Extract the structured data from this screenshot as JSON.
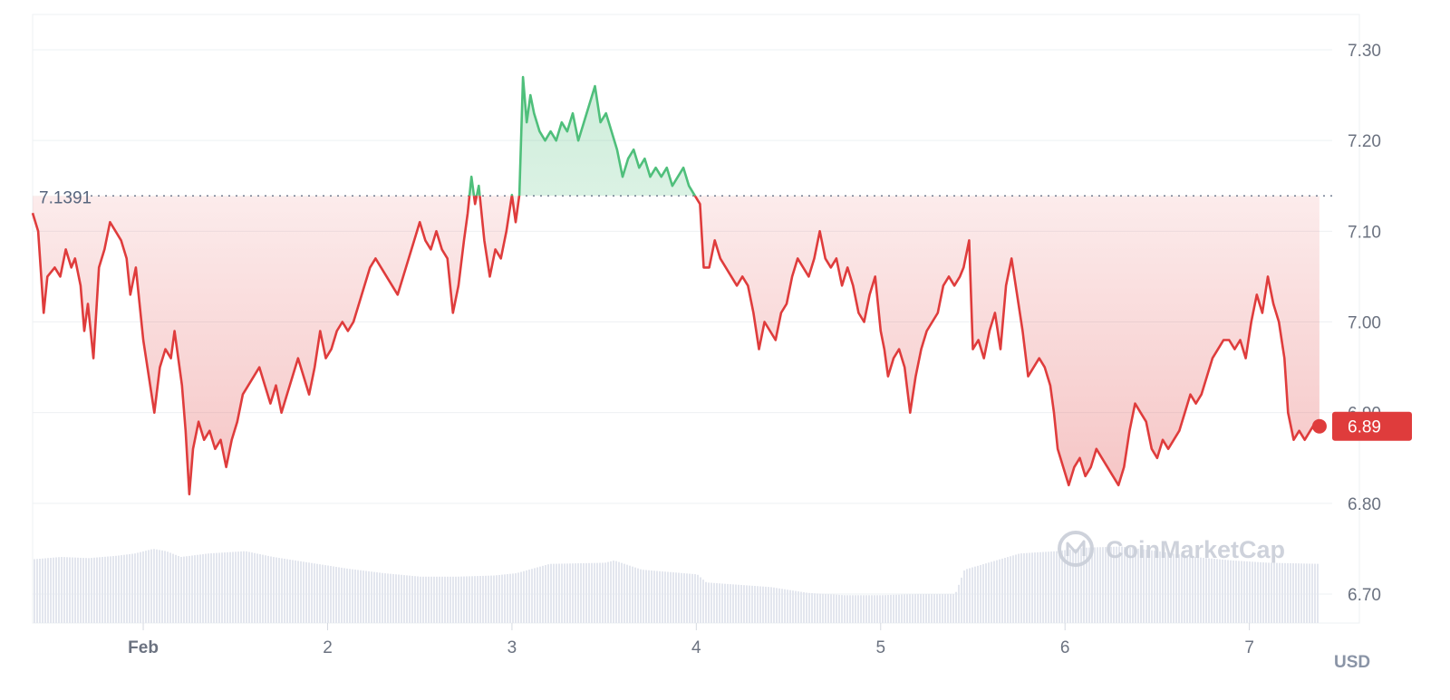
{
  "chart_data": {
    "type": "line",
    "y_unit": "USD",
    "ylim": [
      6.7,
      7.3
    ],
    "y_ticks": [
      "7.30",
      "7.20",
      "7.10",
      "7.00",
      "6.90",
      "6.80",
      "6.70"
    ],
    "x_range_days": [
      0.4,
      7.4
    ],
    "x_ticks": [
      {
        "label": "Feb",
        "day": 1,
        "bold": true
      },
      {
        "label": "2",
        "day": 2,
        "bold": false
      },
      {
        "label": "3",
        "day": 3,
        "bold": false
      },
      {
        "label": "4",
        "day": 4,
        "bold": false
      },
      {
        "label": "5",
        "day": 5,
        "bold": false
      },
      {
        "label": "6",
        "day": 6,
        "bold": false
      },
      {
        "label": "7",
        "day": 7,
        "bold": false
      }
    ],
    "reference_value": 7.139,
    "reference_label": "7.1391",
    "current_price": 6.885,
    "current_price_label": "6.89",
    "colors": {
      "above": "#4fbf7b",
      "below": "#df3c3c",
      "volume": "#e3e6ee",
      "grid": "#eef0f3"
    },
    "watermark": "CoinMarketCap",
    "price": [
      [
        0.4,
        7.12
      ],
      [
        0.43,
        7.1
      ],
      [
        0.46,
        7.01
      ],
      [
        0.48,
        7.05
      ],
      [
        0.52,
        7.06
      ],
      [
        0.55,
        7.05
      ],
      [
        0.58,
        7.08
      ],
      [
        0.61,
        7.06
      ],
      [
        0.63,
        7.07
      ],
      [
        0.66,
        7.04
      ],
      [
        0.68,
        6.99
      ],
      [
        0.7,
        7.02
      ],
      [
        0.73,
        6.96
      ],
      [
        0.76,
        7.06
      ],
      [
        0.79,
        7.08
      ],
      [
        0.82,
        7.11
      ],
      [
        0.85,
        7.1
      ],
      [
        0.88,
        7.09
      ],
      [
        0.91,
        7.07
      ],
      [
        0.93,
        7.03
      ],
      [
        0.96,
        7.06
      ],
      [
        0.98,
        7.02
      ],
      [
        1.0,
        6.98
      ],
      [
        1.03,
        6.94
      ],
      [
        1.06,
        6.9
      ],
      [
        1.09,
        6.95
      ],
      [
        1.12,
        6.97
      ],
      [
        1.15,
        6.96
      ],
      [
        1.17,
        6.99
      ],
      [
        1.19,
        6.96
      ],
      [
        1.21,
        6.93
      ],
      [
        1.23,
        6.88
      ],
      [
        1.25,
        6.81
      ],
      [
        1.27,
        6.86
      ],
      [
        1.3,
        6.89
      ],
      [
        1.33,
        6.87
      ],
      [
        1.36,
        6.88
      ],
      [
        1.39,
        6.86
      ],
      [
        1.42,
        6.87
      ],
      [
        1.45,
        6.84
      ],
      [
        1.48,
        6.87
      ],
      [
        1.51,
        6.89
      ],
      [
        1.54,
        6.92
      ],
      [
        1.57,
        6.93
      ],
      [
        1.6,
        6.94
      ],
      [
        1.63,
        6.95
      ],
      [
        1.66,
        6.93
      ],
      [
        1.69,
        6.91
      ],
      [
        1.72,
        6.93
      ],
      [
        1.75,
        6.9
      ],
      [
        1.78,
        6.92
      ],
      [
        1.81,
        6.94
      ],
      [
        1.84,
        6.96
      ],
      [
        1.87,
        6.94
      ],
      [
        1.9,
        6.92
      ],
      [
        1.93,
        6.95
      ],
      [
        1.96,
        6.99
      ],
      [
        1.99,
        6.96
      ],
      [
        2.02,
        6.97
      ],
      [
        2.05,
        6.99
      ],
      [
        2.08,
        7.0
      ],
      [
        2.11,
        6.99
      ],
      [
        2.14,
        7.0
      ],
      [
        2.17,
        7.02
      ],
      [
        2.2,
        7.04
      ],
      [
        2.23,
        7.06
      ],
      [
        2.26,
        7.07
      ],
      [
        2.29,
        7.06
      ],
      [
        2.32,
        7.05
      ],
      [
        2.35,
        7.04
      ],
      [
        2.38,
        7.03
      ],
      [
        2.41,
        7.05
      ],
      [
        2.44,
        7.07
      ],
      [
        2.47,
        7.09
      ],
      [
        2.5,
        7.11
      ],
      [
        2.53,
        7.09
      ],
      [
        2.56,
        7.08
      ],
      [
        2.59,
        7.1
      ],
      [
        2.62,
        7.08
      ],
      [
        2.65,
        7.07
      ],
      [
        2.68,
        7.01
      ],
      [
        2.71,
        7.04
      ],
      [
        2.74,
        7.09
      ],
      [
        2.76,
        7.12
      ],
      [
        2.78,
        7.16
      ],
      [
        2.8,
        7.13
      ],
      [
        2.82,
        7.15
      ],
      [
        2.85,
        7.09
      ],
      [
        2.88,
        7.05
      ],
      [
        2.91,
        7.08
      ],
      [
        2.94,
        7.07
      ],
      [
        2.97,
        7.1
      ],
      [
        3.0,
        7.14
      ],
      [
        3.02,
        7.11
      ],
      [
        3.04,
        7.14
      ],
      [
        3.06,
        7.27
      ],
      [
        3.08,
        7.22
      ],
      [
        3.1,
        7.25
      ],
      [
        3.12,
        7.23
      ],
      [
        3.15,
        7.21
      ],
      [
        3.18,
        7.2
      ],
      [
        3.21,
        7.21
      ],
      [
        3.24,
        7.2
      ],
      [
        3.27,
        7.22
      ],
      [
        3.3,
        7.21
      ],
      [
        3.33,
        7.23
      ],
      [
        3.36,
        7.2
      ],
      [
        3.39,
        7.22
      ],
      [
        3.42,
        7.24
      ],
      [
        3.45,
        7.26
      ],
      [
        3.48,
        7.22
      ],
      [
        3.51,
        7.23
      ],
      [
        3.54,
        7.21
      ],
      [
        3.57,
        7.19
      ],
      [
        3.6,
        7.16
      ],
      [
        3.63,
        7.18
      ],
      [
        3.66,
        7.19
      ],
      [
        3.69,
        7.17
      ],
      [
        3.72,
        7.18
      ],
      [
        3.75,
        7.16
      ],
      [
        3.78,
        7.17
      ],
      [
        3.81,
        7.16
      ],
      [
        3.84,
        7.17
      ],
      [
        3.87,
        7.15
      ],
      [
        3.9,
        7.16
      ],
      [
        3.93,
        7.17
      ],
      [
        3.96,
        7.15
      ],
      [
        3.99,
        7.14
      ],
      [
        4.02,
        7.13
      ],
      [
        4.04,
        7.06
      ],
      [
        4.07,
        7.06
      ],
      [
        4.1,
        7.09
      ],
      [
        4.13,
        7.07
      ],
      [
        4.16,
        7.06
      ],
      [
        4.19,
        7.05
      ],
      [
        4.22,
        7.04
      ],
      [
        4.25,
        7.05
      ],
      [
        4.28,
        7.04
      ],
      [
        4.31,
        7.01
      ],
      [
        4.34,
        6.97
      ],
      [
        4.37,
        7.0
      ],
      [
        4.4,
        6.99
      ],
      [
        4.43,
        6.98
      ],
      [
        4.46,
        7.01
      ],
      [
        4.49,
        7.02
      ],
      [
        4.52,
        7.05
      ],
      [
        4.55,
        7.07
      ],
      [
        4.58,
        7.06
      ],
      [
        4.61,
        7.05
      ],
      [
        4.64,
        7.07
      ],
      [
        4.67,
        7.1
      ],
      [
        4.7,
        7.07
      ],
      [
        4.73,
        7.06
      ],
      [
        4.76,
        7.07
      ],
      [
        4.79,
        7.04
      ],
      [
        4.82,
        7.06
      ],
      [
        4.85,
        7.04
      ],
      [
        4.88,
        7.01
      ],
      [
        4.91,
        7.0
      ],
      [
        4.94,
        7.03
      ],
      [
        4.97,
        7.05
      ],
      [
        5.0,
        6.99
      ],
      [
        5.02,
        6.97
      ],
      [
        5.04,
        6.94
      ],
      [
        5.07,
        6.96
      ],
      [
        5.1,
        6.97
      ],
      [
        5.13,
        6.95
      ],
      [
        5.16,
        6.9
      ],
      [
        5.19,
        6.94
      ],
      [
        5.22,
        6.97
      ],
      [
        5.25,
        6.99
      ],
      [
        5.28,
        7.0
      ],
      [
        5.31,
        7.01
      ],
      [
        5.34,
        7.04
      ],
      [
        5.37,
        7.05
      ],
      [
        5.4,
        7.04
      ],
      [
        5.43,
        7.05
      ],
      [
        5.45,
        7.06
      ],
      [
        5.48,
        7.09
      ],
      [
        5.5,
        6.97
      ],
      [
        5.53,
        6.98
      ],
      [
        5.56,
        6.96
      ],
      [
        5.59,
        6.99
      ],
      [
        5.62,
        7.01
      ],
      [
        5.65,
        6.97
      ],
      [
        5.68,
        7.04
      ],
      [
        5.71,
        7.07
      ],
      [
        5.74,
        7.03
      ],
      [
        5.77,
        6.99
      ],
      [
        5.8,
        6.94
      ],
      [
        5.83,
        6.95
      ],
      [
        5.86,
        6.96
      ],
      [
        5.89,
        6.95
      ],
      [
        5.92,
        6.93
      ],
      [
        5.94,
        6.9
      ],
      [
        5.96,
        6.86
      ],
      [
        5.99,
        6.84
      ],
      [
        6.02,
        6.82
      ],
      [
        6.05,
        6.84
      ],
      [
        6.08,
        6.85
      ],
      [
        6.11,
        6.83
      ],
      [
        6.14,
        6.84
      ],
      [
        6.17,
        6.86
      ],
      [
        6.2,
        6.85
      ],
      [
        6.23,
        6.84
      ],
      [
        6.26,
        6.83
      ],
      [
        6.29,
        6.82
      ],
      [
        6.32,
        6.84
      ],
      [
        6.35,
        6.88
      ],
      [
        6.38,
        6.91
      ],
      [
        6.41,
        6.9
      ],
      [
        6.44,
        6.89
      ],
      [
        6.47,
        6.86
      ],
      [
        6.5,
        6.85
      ],
      [
        6.53,
        6.87
      ],
      [
        6.56,
        6.86
      ],
      [
        6.59,
        6.87
      ],
      [
        6.62,
        6.88
      ],
      [
        6.65,
        6.9
      ],
      [
        6.68,
        6.92
      ],
      [
        6.71,
        6.91
      ],
      [
        6.74,
        6.92
      ],
      [
        6.77,
        6.94
      ],
      [
        6.8,
        6.96
      ],
      [
        6.83,
        6.97
      ],
      [
        6.86,
        6.98
      ],
      [
        6.89,
        6.98
      ],
      [
        6.92,
        6.97
      ],
      [
        6.95,
        6.98
      ],
      [
        6.98,
        6.96
      ],
      [
        7.01,
        7.0
      ],
      [
        7.04,
        7.03
      ],
      [
        7.07,
        7.01
      ],
      [
        7.1,
        7.05
      ],
      [
        7.13,
        7.02
      ],
      [
        7.16,
        7.0
      ],
      [
        7.19,
        6.96
      ],
      [
        7.21,
        6.9
      ],
      [
        7.24,
        6.87
      ],
      [
        7.27,
        6.88
      ],
      [
        7.3,
        6.87
      ],
      [
        7.33,
        6.88
      ],
      [
        7.36,
        6.89
      ],
      [
        7.38,
        6.885
      ]
    ],
    "volume": [
      [
        0.4,
        0.55
      ],
      [
        0.55,
        0.57
      ],
      [
        0.7,
        0.56
      ],
      [
        0.85,
        0.58
      ],
      [
        0.95,
        0.6
      ],
      [
        1.05,
        0.64
      ],
      [
        1.12,
        0.62
      ],
      [
        1.2,
        0.57
      ],
      [
        1.35,
        0.6
      ],
      [
        1.55,
        0.62
      ],
      [
        1.7,
        0.57
      ],
      [
        1.9,
        0.52
      ],
      [
        2.1,
        0.47
      ],
      [
        2.3,
        0.43
      ],
      [
        2.5,
        0.4
      ],
      [
        2.7,
        0.4
      ],
      [
        2.9,
        0.41
      ],
      [
        3.02,
        0.43
      ],
      [
        3.2,
        0.51
      ],
      [
        3.5,
        0.52
      ],
      [
        3.55,
        0.54
      ],
      [
        3.7,
        0.46
      ],
      [
        4.0,
        0.42
      ],
      [
        4.05,
        0.35
      ],
      [
        4.4,
        0.31
      ],
      [
        4.6,
        0.26
      ],
      [
        4.8,
        0.24
      ],
      [
        5.0,
        0.24
      ],
      [
        5.2,
        0.25
      ],
      [
        5.4,
        0.25
      ],
      [
        5.45,
        0.46
      ],
      [
        5.6,
        0.53
      ],
      [
        5.75,
        0.6
      ],
      [
        5.95,
        0.62
      ],
      [
        6.1,
        0.65
      ],
      [
        6.3,
        0.66
      ],
      [
        6.5,
        0.62
      ],
      [
        6.7,
        0.57
      ],
      [
        6.9,
        0.54
      ],
      [
        7.1,
        0.52
      ],
      [
        7.38,
        0.51
      ]
    ]
  }
}
